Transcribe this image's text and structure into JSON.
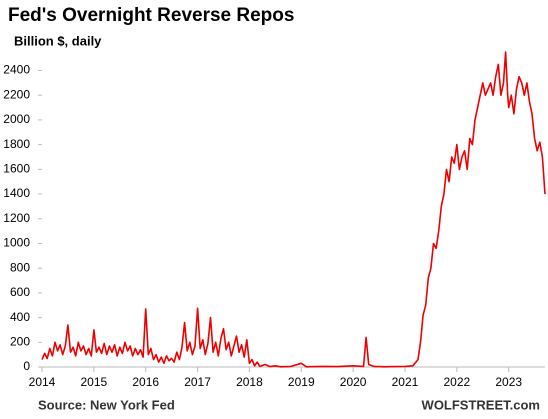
{
  "chart_data": {
    "type": "line",
    "title": "Fed's Overnight  Reverse Repos",
    "subtitle": "Billion $, daily",
    "source": "Source: New York Fed",
    "credit": "WOLFSTREET.com",
    "color": "#ee0000",
    "x": [
      2014.0,
      2014.05,
      2014.1,
      2014.15,
      2014.2,
      2014.25,
      2014.3,
      2014.35,
      2014.4,
      2014.45,
      2014.5,
      2014.55,
      2014.6,
      2014.65,
      2014.7,
      2014.75,
      2014.8,
      2014.85,
      2014.9,
      2014.95,
      2015.0,
      2015.05,
      2015.1,
      2015.15,
      2015.2,
      2015.25,
      2015.3,
      2015.35,
      2015.4,
      2015.45,
      2015.5,
      2015.55,
      2015.6,
      2015.65,
      2015.7,
      2015.75,
      2015.8,
      2015.85,
      2015.9,
      2015.95,
      2016.0,
      2016.05,
      2016.1,
      2016.15,
      2016.2,
      2016.25,
      2016.3,
      2016.35,
      2016.4,
      2016.45,
      2016.5,
      2016.55,
      2016.6,
      2016.65,
      2016.7,
      2016.75,
      2016.8,
      2016.85,
      2016.9,
      2016.95,
      2017.0,
      2017.05,
      2017.1,
      2017.15,
      2017.2,
      2017.25,
      2017.3,
      2017.35,
      2017.4,
      2017.45,
      2017.5,
      2017.55,
      2017.6,
      2017.65,
      2017.7,
      2017.75,
      2017.8,
      2017.85,
      2017.9,
      2017.95,
      2018.0,
      2018.05,
      2018.1,
      2018.15,
      2018.2,
      2018.3,
      2018.4,
      2018.5,
      2018.6,
      2018.8,
      2019.0,
      2019.1,
      2019.4,
      2019.7,
      2020.0,
      2020.2,
      2020.25,
      2020.3,
      2020.4,
      2020.6,
      2020.8,
      2021.0,
      2021.15,
      2021.25,
      2021.3,
      2021.35,
      2021.4,
      2021.45,
      2021.5,
      2021.55,
      2021.6,
      2021.65,
      2021.7,
      2021.75,
      2021.8,
      2021.85,
      2021.9,
      2021.95,
      2022.0,
      2022.05,
      2022.1,
      2022.15,
      2022.2,
      2022.25,
      2022.3,
      2022.35,
      2022.4,
      2022.45,
      2022.5,
      2022.55,
      2022.6,
      2022.65,
      2022.7,
      2022.75,
      2022.8,
      2022.85,
      2022.9,
      2022.94,
      2022.98,
      2023.0,
      2023.05,
      2023.1,
      2023.15,
      2023.2,
      2023.25,
      2023.3,
      2023.35,
      2023.4,
      2023.45,
      2023.5,
      2023.55,
      2023.6,
      2023.65,
      2023.7
    ],
    "values": [
      60,
      110,
      70,
      150,
      90,
      200,
      130,
      180,
      100,
      170,
      340,
      120,
      160,
      90,
      200,
      130,
      170,
      100,
      150,
      90,
      300,
      120,
      160,
      110,
      190,
      100,
      170,
      120,
      180,
      90,
      160,
      110,
      200,
      130,
      170,
      90,
      150,
      100,
      140,
      80,
      470,
      100,
      150,
      60,
      100,
      40,
      80,
      30,
      90,
      50,
      70,
      40,
      120,
      60,
      160,
      360,
      130,
      200,
      100,
      170,
      475,
      150,
      220,
      100,
      190,
      400,
      120,
      200,
      90,
      230,
      310,
      140,
      200,
      90,
      170,
      250,
      120,
      180,
      80,
      220,
      30,
      60,
      10,
      40,
      5,
      20,
      3,
      10,
      2,
      5,
      30,
      2,
      5,
      3,
      10,
      5,
      240,
      20,
      5,
      2,
      3,
      5,
      10,
      60,
      200,
      420,
      500,
      720,
      800,
      1000,
      960,
      1100,
      1300,
      1400,
      1600,
      1500,
      1700,
      1650,
      1800,
      1600,
      1700,
      1750,
      1600,
      1850,
      1800,
      2000,
      2100,
      2200,
      2300,
      2200,
      2250,
      2300,
      2200,
      2350,
      2450,
      2200,
      2300,
      2550,
      2200,
      2100,
      2200,
      2050,
      2250,
      2350,
      2300,
      2200,
      2300,
      2150,
      2050,
      1850,
      1750,
      1820,
      1700,
      1400
    ],
    "xlim": [
      2014,
      2023.7
    ],
    "xticks": [
      2014,
      2015,
      2016,
      2017,
      2018,
      2019,
      2020,
      2021,
      2022,
      2023
    ],
    "ylim": [
      0,
      2550
    ],
    "yticks": [
      0,
      200,
      400,
      600,
      800,
      1000,
      1200,
      1400,
      1600,
      1800,
      2000,
      2200,
      2400
    ]
  }
}
